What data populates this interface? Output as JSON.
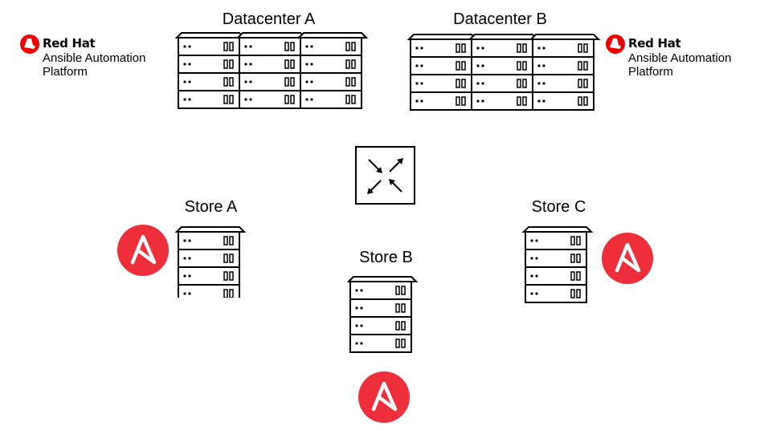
{
  "datacenters": [
    {
      "name": "Datacenter A"
    },
    {
      "name": "Datacenter B"
    }
  ],
  "stores": [
    {
      "name": "Store A"
    },
    {
      "name": "Store B"
    },
    {
      "name": "Store C"
    }
  ],
  "brand": {
    "company": "Red Hat",
    "product_line1": "Ansible Automation",
    "product_line2": "Platform",
    "accent_color": "#ee0000"
  },
  "ansible_logo": {
    "color": "#ee2e3b",
    "letter": "A"
  },
  "icons": [
    "server-rack-icon",
    "network-switch-icon",
    "ansible-logo-icon",
    "redhat-logo-icon"
  ]
}
